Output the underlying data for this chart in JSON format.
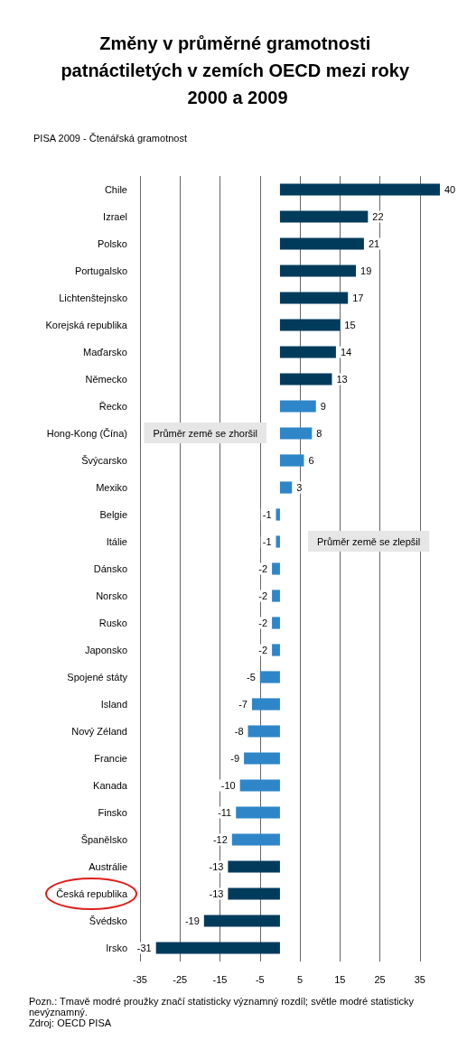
{
  "chart_data": {
    "type": "bar",
    "orientation": "horizontal",
    "title": "Změny v průměrné gramotnosti patnáctiletých v zemích OECD mezi roky 2000 a 2009",
    "subtitle": "PISA 2009 - Čtenářská gramotnost",
    "categories": [
      "Chile",
      "Izrael",
      "Polsko",
      "Portugalsko",
      "Lichtenštejnsko",
      "Korejská republika",
      "Maďarsko",
      "Německo",
      "Řecko",
      "Hong-Kong (Čína)",
      "Švýcarsko",
      "Mexiko",
      "Belgie",
      "Itálie",
      "Dánsko",
      "Norsko",
      "Rusko",
      "Japonsko",
      "Spojené státy",
      "Island",
      "Nový Zéland",
      "Francie",
      "Kanada",
      "Finsko",
      "Španělsko",
      "Austrálie",
      "Česká republika",
      "Švédsko",
      "Irsko"
    ],
    "values": [
      40,
      22,
      21,
      19,
      17,
      15,
      14,
      13,
      9,
      8,
      6,
      3,
      -1,
      -1,
      -2,
      -2,
      -2,
      -2,
      -5,
      -7,
      -8,
      -9,
      -10,
      -11,
      -12,
      -13,
      -13,
      -19,
      -31
    ],
    "colors": [
      "#003b5c",
      "#003b5c",
      "#003b5c",
      "#003b5c",
      "#003b5c",
      "#003b5c",
      "#003b5c",
      "#003b5c",
      "#2e86c8",
      "#2e86c8",
      "#2e86c8",
      "#2e86c8",
      "#2e86c8",
      "#2e86c8",
      "#2e86c8",
      "#2e86c8",
      "#2e86c8",
      "#2e86c8",
      "#2e86c8",
      "#2e86c8",
      "#2e86c8",
      "#2e86c8",
      "#2e86c8",
      "#2e86c8",
      "#2e86c8",
      "#003b5c",
      "#003b5c",
      "#003b5c",
      "#003b5c"
    ],
    "xlim": [
      -35,
      40
    ],
    "xticks": [
      -35,
      -25,
      -15,
      -5,
      5,
      15,
      25,
      35
    ],
    "grid": "x",
    "data_labels": true,
    "annotations": [
      "Průměr země se zhoršil",
      "Průměr země se zlepšil",
      "Pozn.: Tmavě modré proužky značí statisticky významný rozdíl; světle modré statisticky nevýznamný.",
      "Zdroj: OECD PISA"
    ]
  }
}
